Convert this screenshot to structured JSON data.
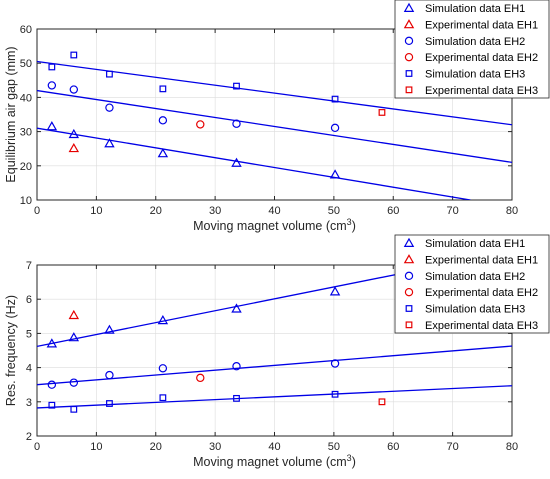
{
  "colors": {
    "simulation": "#0000e6",
    "experimental": "#e60000",
    "fit": "#0000e6"
  },
  "chart_data": [
    {
      "type": "scatter",
      "xlabel": "Moving magnet volume (cm",
      "xlabel_sup": "3",
      "xlabel_tail": ")",
      "ylabel": "Equilibrium air gap (mm)",
      "xlim": [
        0,
        80
      ],
      "ylim": [
        10,
        60
      ],
      "xticks": [
        "0",
        "10",
        "20",
        "30",
        "40",
        "50",
        "60",
        "70",
        "80"
      ],
      "yticks": [
        "10",
        "20",
        "30",
        "40",
        "50",
        "60"
      ],
      "grid": true,
      "legend_position": "top-right",
      "series": [
        {
          "name": "Simulation data EH1",
          "marker": "triangle",
          "color": "#0000e6",
          "points": [
            [
              2.5,
              31.5
            ],
            [
              6.2,
              29.2
            ],
            [
              12.2,
              26.5
            ],
            [
              21.2,
              23.6
            ],
            [
              33.6,
              20.8
            ],
            [
              50.2,
              17.4
            ]
          ]
        },
        {
          "name": "Experimental data EH1",
          "marker": "triangle",
          "color": "#e60000",
          "points": [
            [
              6.2,
              25.1
            ]
          ]
        },
        {
          "name": "Simulation data EH2",
          "marker": "circle",
          "color": "#0000e6",
          "points": [
            [
              2.5,
              43.5
            ],
            [
              6.2,
              42.3
            ],
            [
              12.2,
              37
            ],
            [
              21.2,
              33.3
            ],
            [
              33.6,
              32.3
            ],
            [
              50.2,
              31.1
            ]
          ]
        },
        {
          "name": "Experimental data EH2",
          "marker": "circle",
          "color": "#e60000",
          "points": [
            [
              27.5,
              32.1
            ]
          ]
        },
        {
          "name": "Simulation data EH3",
          "marker": "square",
          "color": "#0000e6",
          "points": [
            [
              2.5,
              48.9
            ],
            [
              6.2,
              52.4
            ],
            [
              12.2,
              46.8
            ],
            [
              21.2,
              42.5
            ],
            [
              33.6,
              43.3
            ],
            [
              50.2,
              39.5
            ]
          ]
        },
        {
          "name": "Experimental data EH3",
          "marker": "square",
          "color": "#e60000",
          "points": [
            [
              58.1,
              35.6
            ]
          ]
        }
      ],
      "fit_lines": [
        {
          "x": [
            0,
            73
          ],
          "y": [
            31,
            10
          ]
        },
        {
          "x": [
            0,
            80
          ],
          "y": [
            42,
            21
          ]
        },
        {
          "x": [
            0,
            80
          ],
          "y": [
            50.5,
            32
          ]
        }
      ]
    },
    {
      "type": "scatter",
      "xlabel": "Moving magnet volume (cm",
      "xlabel_sup": "3",
      "xlabel_tail": ")",
      "ylabel": "Res. frequency (Hz)",
      "xlim": [
        0,
        80
      ],
      "ylim": [
        2,
        7
      ],
      "xticks": [
        "0",
        "10",
        "20",
        "30",
        "40",
        "50",
        "60",
        "70",
        "80"
      ],
      "yticks": [
        "2",
        "3",
        "4",
        "5",
        "6",
        "7"
      ],
      "grid": true,
      "legend_position": "top-right",
      "series": [
        {
          "name": "Simulation data EH1",
          "marker": "triangle",
          "color": "#0000e6",
          "points": [
            [
              2.5,
              4.7
            ],
            [
              6.2,
              4.88
            ],
            [
              12.2,
              5.1
            ],
            [
              21.2,
              5.38
            ],
            [
              33.6,
              5.72
            ],
            [
              50.2,
              6.22
            ]
          ]
        },
        {
          "name": "Experimental data EH1",
          "marker": "triangle",
          "color": "#e60000",
          "points": [
            [
              6.2,
              5.53
            ]
          ]
        },
        {
          "name": "Simulation data EH2",
          "marker": "circle",
          "color": "#0000e6",
          "points": [
            [
              2.5,
              3.5
            ],
            [
              6.2,
              3.56
            ],
            [
              12.2,
              3.78
            ],
            [
              21.2,
              3.98
            ],
            [
              33.6,
              4.04
            ],
            [
              50.2,
              4.12
            ]
          ]
        },
        {
          "name": "Experimental data EH2",
          "marker": "circle",
          "color": "#e60000",
          "points": [
            [
              27.5,
              3.7
            ]
          ]
        },
        {
          "name": "Simulation data EH3",
          "marker": "square",
          "color": "#0000e6",
          "points": [
            [
              2.5,
              2.9
            ],
            [
              6.2,
              2.78
            ],
            [
              12.2,
              2.95
            ],
            [
              21.2,
              3.12
            ],
            [
              33.6,
              3.1
            ],
            [
              50.2,
              3.22
            ]
          ]
        },
        {
          "name": "Experimental data EH3",
          "marker": "square",
          "color": "#e60000",
          "points": [
            [
              58.1,
              3.0
            ]
          ]
        }
      ],
      "fit_lines": [
        {
          "x": [
            0,
            80
          ],
          "y": [
            4.62,
            7.4
          ]
        },
        {
          "x": [
            0,
            80
          ],
          "y": [
            3.5,
            4.63
          ]
        },
        {
          "x": [
            0,
            80
          ],
          "y": [
            2.82,
            3.47
          ]
        }
      ]
    }
  ]
}
